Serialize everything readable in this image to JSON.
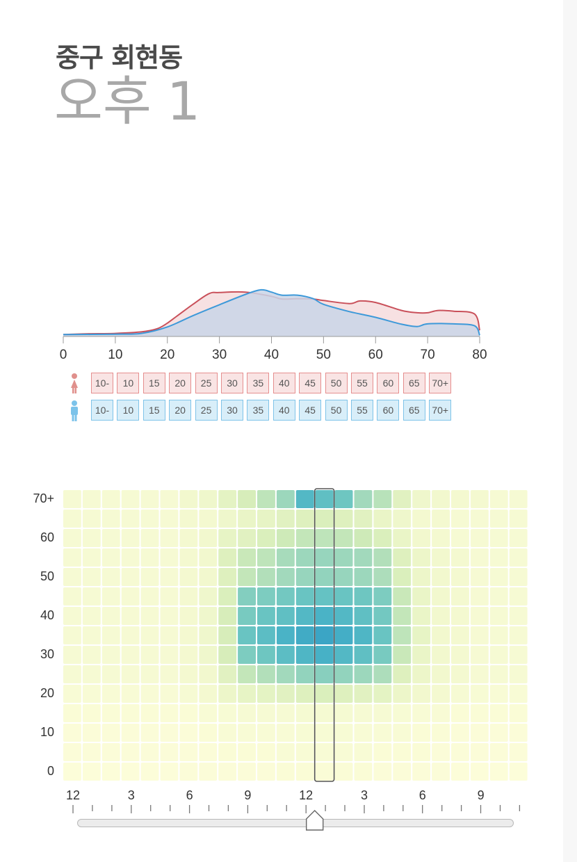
{
  "header": {
    "district": "중구 회현동",
    "time_label": "오후",
    "time_hour": "1"
  },
  "colors": {
    "female_line": "#c9505a",
    "female_fill": "#f7dfe0",
    "male_line": "#3d99d9",
    "male_fill": "#c9d5e8",
    "heatmap_low": "#fdfcd9",
    "heatmap_high": "#3aa3c3",
    "selection_outline": "#555555"
  },
  "age_filter": {
    "female_icon": "female-person-icon",
    "male_icon": "male-person-icon",
    "labels": [
      "10-",
      "10",
      "15",
      "20",
      "25",
      "30",
      "35",
      "40",
      "45",
      "50",
      "55",
      "60",
      "65",
      "70+"
    ]
  },
  "slider": {
    "labels": [
      "12",
      "3",
      "6",
      "9",
      "12",
      "3",
      "6",
      "9"
    ],
    "selected_hour_index": 13
  },
  "chart_data": [
    {
      "type": "area",
      "x_ticks": [
        "0",
        "10",
        "20",
        "30",
        "40",
        "50",
        "60",
        "70",
        "80"
      ],
      "xlim": [
        0,
        80
      ],
      "series": [
        {
          "x": [
            0,
            5,
            10,
            15,
            18,
            20,
            22,
            25,
            28,
            30,
            35,
            40,
            42,
            45,
            48,
            50,
            55,
            57,
            60,
            65,
            68,
            70,
            72,
            75,
            79,
            80
          ],
          "values": [
            0.5,
            0.7,
            0.8,
            1.2,
            2,
            3.5,
            5.5,
            8.5,
            11.2,
            11.5,
            11.6,
            10.5,
            9.8,
            9.9,
            9.8,
            9.4,
            8.6,
            9.3,
            8.9,
            6.8,
            6.2,
            6.2,
            6.8,
            6.6,
            5.9,
            1.6
          ],
          "color": "female"
        },
        {
          "x": [
            0,
            10,
            15,
            20,
            25,
            30,
            35,
            38,
            40,
            42,
            45,
            48,
            50,
            55,
            60,
            65,
            68,
            70,
            75,
            79,
            80
          ],
          "values": [
            0.5,
            0.6,
            0.8,
            2.5,
            5.5,
            8.3,
            11,
            12.2,
            11.6,
            10.8,
            10.8,
            9.9,
            8.4,
            6.5,
            5,
            3.2,
            2.6,
            3.3,
            3.3,
            2.8,
            0.3
          ],
          "color": "male"
        }
      ]
    },
    {
      "type": "heatmap",
      "x_labels": [
        "12",
        "3",
        "6",
        "9",
        "12",
        "3",
        "6",
        "9"
      ],
      "y_labels": [
        "0",
        "10",
        "20",
        "30",
        "40",
        "50",
        "60",
        "70+"
      ],
      "rows_top_to_bottom": [
        [
          0.06,
          0.06,
          0.06,
          0.06,
          0.06,
          0.06,
          0.1,
          0.12,
          0.2,
          0.28,
          0.38,
          0.5,
          0.8,
          0.74,
          0.68,
          0.48,
          0.4,
          0.22,
          0.12,
          0.1,
          0.08,
          0.08,
          0.06,
          0.06
        ],
        [
          0.06,
          0.06,
          0.06,
          0.06,
          0.06,
          0.06,
          0.08,
          0.08,
          0.12,
          0.16,
          0.18,
          0.22,
          0.24,
          0.26,
          0.24,
          0.22,
          0.16,
          0.12,
          0.08,
          0.08,
          0.06,
          0.06,
          0.06,
          0.06
        ],
        [
          0.06,
          0.06,
          0.06,
          0.06,
          0.06,
          0.06,
          0.08,
          0.1,
          0.18,
          0.22,
          0.26,
          0.32,
          0.36,
          0.38,
          0.36,
          0.32,
          0.26,
          0.16,
          0.1,
          0.08,
          0.06,
          0.06,
          0.06,
          0.06
        ],
        [
          0.06,
          0.06,
          0.06,
          0.06,
          0.06,
          0.06,
          0.08,
          0.1,
          0.24,
          0.34,
          0.38,
          0.46,
          0.5,
          0.52,
          0.5,
          0.48,
          0.42,
          0.24,
          0.14,
          0.1,
          0.08,
          0.06,
          0.06,
          0.06
        ],
        [
          0.06,
          0.06,
          0.06,
          0.06,
          0.06,
          0.06,
          0.08,
          0.1,
          0.24,
          0.36,
          0.42,
          0.48,
          0.52,
          0.54,
          0.52,
          0.5,
          0.44,
          0.26,
          0.14,
          0.1,
          0.08,
          0.06,
          0.06,
          0.06
        ],
        [
          0.06,
          0.06,
          0.06,
          0.06,
          0.06,
          0.06,
          0.08,
          0.12,
          0.26,
          0.6,
          0.62,
          0.66,
          0.7,
          0.72,
          0.7,
          0.68,
          0.62,
          0.34,
          0.16,
          0.1,
          0.08,
          0.06,
          0.06,
          0.06
        ],
        [
          0.06,
          0.06,
          0.06,
          0.06,
          0.06,
          0.06,
          0.08,
          0.12,
          0.28,
          0.64,
          0.7,
          0.74,
          0.8,
          0.84,
          0.8,
          0.74,
          0.66,
          0.36,
          0.16,
          0.1,
          0.08,
          0.06,
          0.06,
          0.06
        ],
        [
          0.06,
          0.06,
          0.06,
          0.06,
          0.06,
          0.06,
          0.08,
          0.12,
          0.28,
          0.7,
          0.76,
          0.84,
          0.9,
          0.94,
          0.88,
          0.82,
          0.7,
          0.38,
          0.18,
          0.1,
          0.08,
          0.06,
          0.06,
          0.06
        ],
        [
          0.06,
          0.06,
          0.06,
          0.06,
          0.06,
          0.06,
          0.08,
          0.12,
          0.28,
          0.62,
          0.68,
          0.76,
          0.82,
          0.86,
          0.8,
          0.74,
          0.64,
          0.34,
          0.16,
          0.1,
          0.08,
          0.06,
          0.06,
          0.06
        ],
        [
          0.06,
          0.06,
          0.06,
          0.06,
          0.06,
          0.06,
          0.08,
          0.1,
          0.22,
          0.36,
          0.42,
          0.48,
          0.54,
          0.58,
          0.54,
          0.5,
          0.44,
          0.24,
          0.14,
          0.1,
          0.08,
          0.06,
          0.06,
          0.06
        ],
        [
          0.04,
          0.04,
          0.04,
          0.04,
          0.04,
          0.04,
          0.06,
          0.08,
          0.14,
          0.18,
          0.2,
          0.22,
          0.24,
          0.26,
          0.24,
          0.22,
          0.2,
          0.14,
          0.1,
          0.08,
          0.06,
          0.05,
          0.04,
          0.04
        ],
        [
          0.03,
          0.03,
          0.03,
          0.03,
          0.03,
          0.03,
          0.03,
          0.04,
          0.05,
          0.06,
          0.06,
          0.06,
          0.07,
          0.07,
          0.07,
          0.06,
          0.06,
          0.05,
          0.04,
          0.04,
          0.03,
          0.03,
          0.03,
          0.03
        ],
        [
          0.02,
          0.02,
          0.02,
          0.02,
          0.02,
          0.02,
          0.02,
          0.03,
          0.04,
          0.04,
          0.04,
          0.04,
          0.05,
          0.05,
          0.05,
          0.04,
          0.04,
          0.04,
          0.03,
          0.03,
          0.02,
          0.02,
          0.02,
          0.02
        ],
        [
          0.02,
          0.02,
          0.02,
          0.02,
          0.02,
          0.02,
          0.02,
          0.02,
          0.03,
          0.03,
          0.03,
          0.04,
          0.04,
          0.04,
          0.04,
          0.04,
          0.03,
          0.03,
          0.03,
          0.02,
          0.02,
          0.02,
          0.02,
          0.02
        ],
        [
          0.01,
          0.01,
          0.01,
          0.01,
          0.01,
          0.01,
          0.02,
          0.02,
          0.02,
          0.02,
          0.02,
          0.03,
          0.03,
          0.03,
          0.03,
          0.03,
          0.02,
          0.02,
          0.02,
          0.02,
          0.01,
          0.01,
          0.01,
          0.01
        ]
      ],
      "selected_column": 13
    }
  ]
}
